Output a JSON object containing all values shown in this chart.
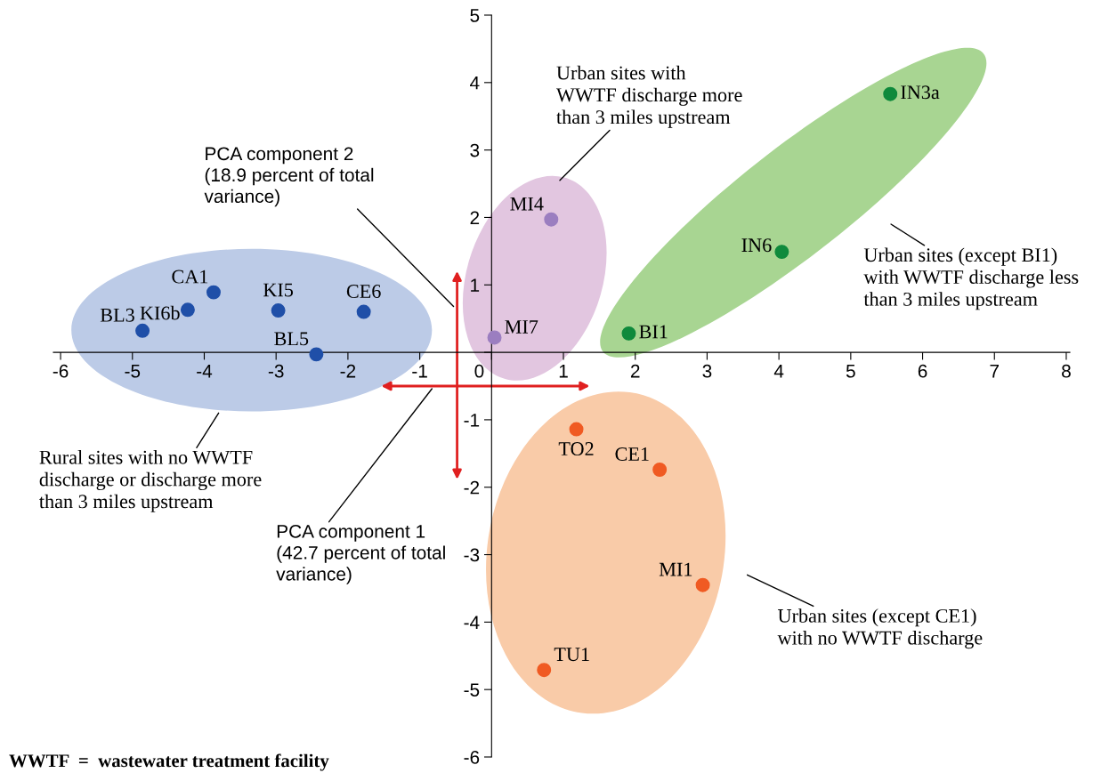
{
  "chart_data": {
    "type": "scatter",
    "marker": "circle",
    "grid": false,
    "legend": false,
    "xlim": [
      -6.1,
      8.05
    ],
    "ylim": [
      -6,
      5
    ],
    "xticks": [
      -6,
      -5,
      -4,
      -3,
      -2,
      -1,
      0,
      1,
      2,
      3,
      4,
      5,
      6,
      7,
      8
    ],
    "yticks": [
      -6,
      -5,
      -4,
      -3,
      -2,
      -1,
      {
        "value": 0,
        "label": null
      },
      1,
      2,
      3,
      4,
      5
    ],
    "series": [
      {
        "color": "#1f4fa8",
        "x": [
          -4.86,
          -4.23,
          -3.87,
          -2.97,
          -1.78,
          -2.44
        ],
        "values": [
          0.32,
          0.63,
          0.89,
          0.62,
          0.6,
          -0.03
        ]
      },
      {
        "color": "#9b7ec0",
        "x": [
          0.83,
          0.04
        ],
        "values": [
          1.97,
          0.22
        ]
      },
      {
        "color": "#0f8a3c",
        "x": [
          5.55,
          4.04,
          1.91
        ],
        "values": [
          3.83,
          1.49,
          0.28
        ]
      },
      {
        "color": "#f05a22",
        "x": [
          1.18,
          2.34,
          2.94,
          0.73
        ],
        "values": [
          -1.14,
          -1.74,
          -3.45,
          -4.71
        ]
      }
    ],
    "annotations": [
      {
        "text": "BL3",
        "x": -4.86,
        "y": 0.32
      },
      {
        "text": "KI6b",
        "x": -4.23,
        "y": 0.63
      },
      {
        "text": "CA1",
        "x": -3.87,
        "y": 0.89
      },
      {
        "text": "KI5",
        "x": -2.97,
        "y": 0.62
      },
      {
        "text": "CE6",
        "x": -1.78,
        "y": 0.6
      },
      {
        "text": "BL5",
        "x": -2.44,
        "y": -0.03
      },
      {
        "text": "MI4",
        "x": 0.83,
        "y": 1.97
      },
      {
        "text": "MI7",
        "x": 0.04,
        "y": 0.22
      },
      {
        "text": "IN3a",
        "x": 5.55,
        "y": 3.83
      },
      {
        "text": "IN6",
        "x": 4.04,
        "y": 1.49
      },
      {
        "text": "BI1",
        "x": 1.91,
        "y": 0.28
      },
      {
        "text": "TO2",
        "x": 1.18,
        "y": -1.14
      },
      {
        "text": "CE1",
        "x": 2.34,
        "y": -1.74
      },
      {
        "text": "MI1",
        "x": 2.94,
        "y": -3.45
      },
      {
        "text": "TU1",
        "x": 0.73,
        "y": -4.71
      },
      "Urban sites with\nWWTF discharge more\nthan 3 miles upstream",
      "PCA component 2\n(18.9 percent of total\nvariance)",
      "Urban sites (except BI1)\nwith WWTF discharge less\nthan 3 miles upstream",
      "Rural sites with no WWTF\ndischarge or discharge more\nthan 3 miles upstream",
      "PCA component 1\n(42.7 percent of total\nvariance)",
      "Urban sites (except CE1)\nwith no WWTF discharge",
      "WWTF  =  wastewater treatment facility"
    ]
  }
}
